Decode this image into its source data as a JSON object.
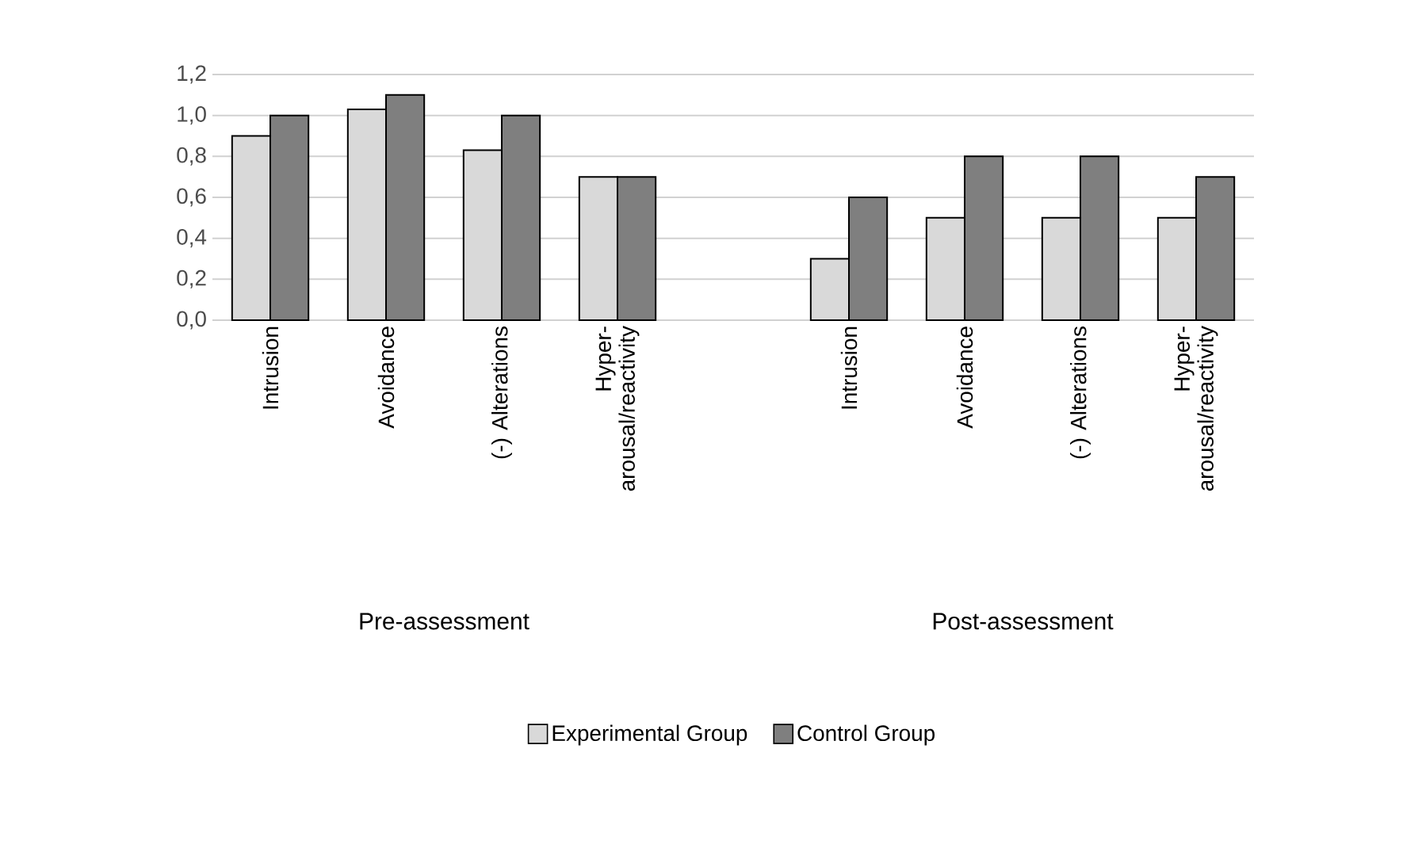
{
  "chart_data": {
    "type": "bar",
    "categories": [
      "Intrusion",
      "Avoidance",
      "(-) Alterations",
      "Hyper-arousal/reactivity",
      null,
      "Intrusion",
      "Avoidance",
      "(-) Alterations",
      "Hyper-arousal/reactivity"
    ],
    "series": [
      {
        "name": "Experimental Group",
        "color": "#d9d9d9",
        "values": [
          0.9,
          1.03,
          0.83,
          0.7,
          null,
          0.3,
          0.5,
          0.5,
          0.5
        ]
      },
      {
        "name": "Control Group",
        "color": "#7f7f7f",
        "values": [
          1.0,
          1.1,
          1.0,
          0.7,
          null,
          0.6,
          0.8,
          0.8,
          0.7
        ]
      }
    ],
    "annotations": [
      "Pre-assessment",
      "Post-assessment"
    ],
    "ylim": [
      0,
      1.2
    ],
    "yticks": [
      {
        "value": 0,
        "label": "0,0"
      },
      {
        "value": 0.2,
        "label": "0,2"
      },
      {
        "value": 0.4,
        "label": "0,4"
      },
      {
        "value": 0.6,
        "label": "0,6"
      },
      {
        "value": 0.8,
        "label": "0,8"
      },
      {
        "value": 1.0,
        "label": "1,0"
      },
      {
        "value": 1.2,
        "label": "1,2"
      }
    ],
    "grid": "y",
    "legend": "bottom"
  }
}
